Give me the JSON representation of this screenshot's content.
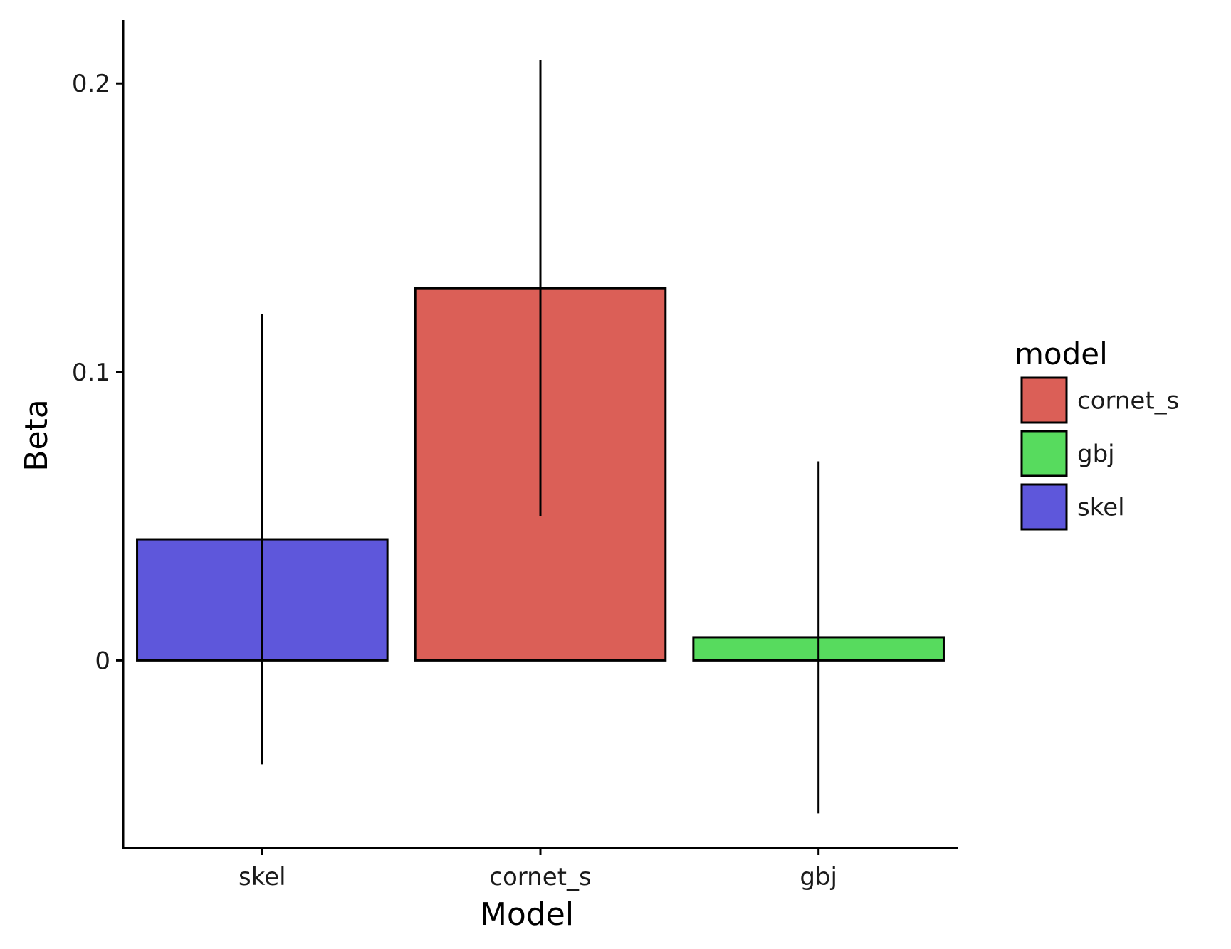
{
  "chart_data": {
    "type": "bar",
    "categories": [
      "skel",
      "cornet_s",
      "gbj"
    ],
    "values": [
      0.042,
      0.129,
      0.008
    ],
    "error_low": [
      -0.036,
      0.05,
      -0.053
    ],
    "error_high": [
      0.12,
      0.208,
      0.069
    ],
    "colors": [
      "#5E57DB",
      "#DB5F57",
      "#57DB5E"
    ],
    "xlabel": "Model",
    "ylabel": "Beta",
    "ylim": [
      -0.065,
      0.222
    ],
    "yticks": [
      0,
      0.1,
      0.2
    ],
    "ytick_labels": [
      "0",
      "0.1",
      "0.2"
    ],
    "grid": false,
    "legend": {
      "title": "model",
      "placement": "right",
      "items": [
        {
          "label": "cornet_s",
          "color": "#DB5F57"
        },
        {
          "label": "gbj",
          "color": "#57DB5E"
        },
        {
          "label": "skel",
          "color": "#5E57DB"
        }
      ]
    }
  }
}
